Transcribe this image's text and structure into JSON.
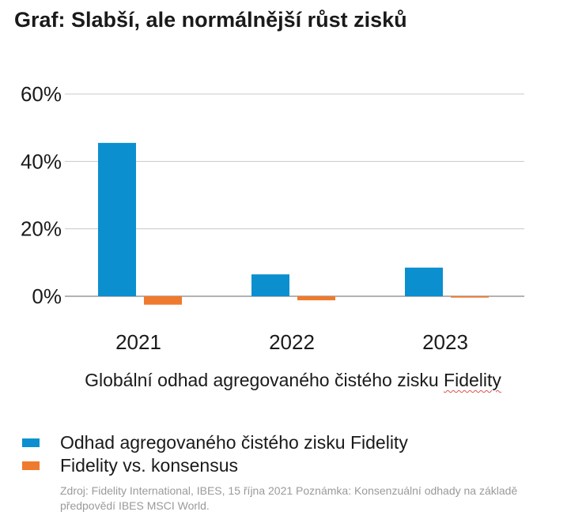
{
  "header": {
    "title": "Graf: Slabší, ale normálnější růst zisků"
  },
  "chart_data": {
    "type": "bar",
    "categories": [
      "2021",
      "2022",
      "2023"
    ],
    "series": [
      {
        "name": "Odhad agregovaného čistého zisku Fidelity",
        "color": "#0b8fcf",
        "values": [
          45.5,
          6.5,
          8.5
        ]
      },
      {
        "name": "Fidelity vs. konsensus",
        "color": "#ef7a2e",
        "values": [
          -2.5,
          -1.2,
          -0.4
        ]
      }
    ],
    "yticks": [
      "0%",
      "20%",
      "40%",
      "60%"
    ],
    "ylim": [
      -5,
      60
    ],
    "grid": true,
    "xlabel_main": "Globální odhad agregovaného čistého zisku ",
    "xlabel_underlined": "Fidelity",
    "legend_position": "bottom-left"
  },
  "footer": {
    "source": "Zdroj: Fidelity International, IBES, 15 října 2021 Poznámka: Konsenzuální odhady na základě předpovědí IBES MSCI World."
  }
}
